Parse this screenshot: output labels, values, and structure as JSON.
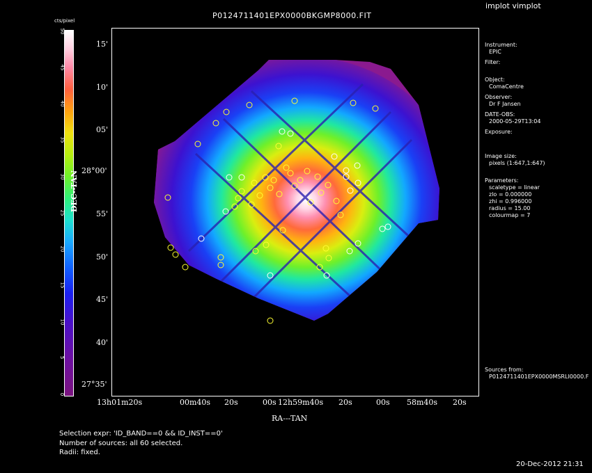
{
  "app": {
    "title": "implot vimplot"
  },
  "plot": {
    "title": "P0124711401EPX0000BKGMP8000.FIT",
    "xlabel": "RA---TAN",
    "ylabel": "DEC--TAN",
    "xticks": [
      "13h01m20s",
      "00m40s",
      "20s",
      "00s",
      "12h59m40s",
      "20s",
      "00s",
      "58m40s",
      "20s"
    ],
    "yticks": [
      "15'",
      "10'",
      "05'",
      "28°00'",
      "55'",
      "50'",
      "45'",
      "40'",
      "27°35'"
    ]
  },
  "colorbar": {
    "unit": "cts/pixel",
    "ticks": [
      "0",
      "5",
      "10",
      "15",
      "20",
      "25",
      "30",
      "35",
      "40",
      "45",
      "50"
    ]
  },
  "info": {
    "instrument_label": "Instrument:",
    "instrument_value": "EPIC",
    "filter_label": "Filter:",
    "object_label": "Object:",
    "object_value": "ComaCentre",
    "observer_label": "Observer:",
    "observer_value": "Dr F Jansen",
    "date_label": "DATE-OBS:",
    "date_value": "2000-05-29T13:04",
    "exposure_label": "Exposure:",
    "imagesize_label": "Image size:",
    "imagesize_value": "pixels (1:647,1:647)",
    "parameters_label": "Parameters:",
    "param_scaletype": "scaletype = linear",
    "param_zlo": "zlo = 0.000000",
    "param_zhi": "zhi = 0.996000",
    "param_radius": "radius = 15.00",
    "param_colourmap": "colourmap = 7",
    "sources_label": "Sources from:",
    "sources_value": "P0124711401EPX0000MSRLI0000.F"
  },
  "footer": {
    "selection": "Selection expr: 'ID_BAND==0 && ID_INST==0'",
    "number": "Number of sources: all 60 selected.",
    "radii": "Radii: fixed.",
    "timestamp": "20-Dec-2012 21:31"
  },
  "colors": {
    "background": "#000000",
    "foreground": "#ffffff",
    "outer_field": "#8a1a8f",
    "circle_yellow": "#ffff33",
    "circle_white": "#ffffff"
  }
}
